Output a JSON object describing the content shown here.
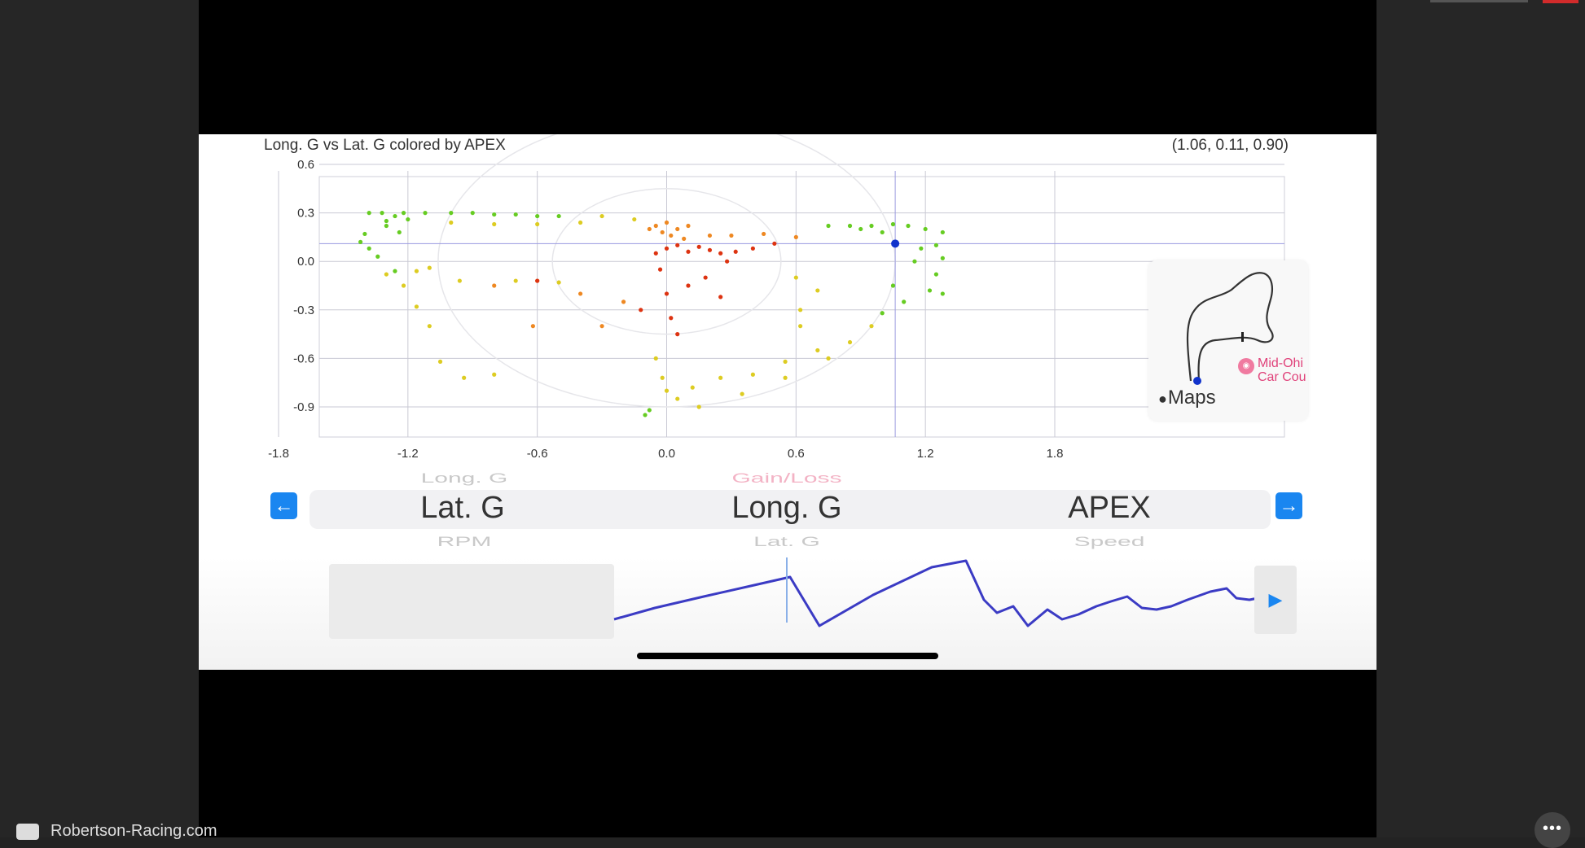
{
  "app": {
    "chart_title": "Long. G vs Lat. G colored by APEX",
    "cursor_readout": "(1.06, 0.11, 0.90)"
  },
  "chart_data": {
    "type": "scatter",
    "title": "Long. G vs Lat. G colored by APEX",
    "xlim": [
      -1.85,
      1.85
    ],
    "ylim": [
      -1.15,
      0.6
    ],
    "x_ticks": [
      -1.8,
      -1.2,
      -0.6,
      0.0,
      0.6,
      1.2,
      1.8
    ],
    "y_ticks": [
      0.6,
      0.3,
      0.0,
      -0.3,
      -0.6,
      -0.9
    ],
    "x_tick_labels": [
      "-1.8",
      "-1.2",
      "-0.6",
      "0.0",
      "0.6",
      "1.2",
      "1.8"
    ],
    "y_tick_labels": [
      "0.6",
      "0.3",
      "0.0",
      "-0.3",
      "-0.6",
      "-0.9"
    ],
    "grid": true,
    "cursor": {
      "x": 1.06,
      "y": 0.11
    },
    "reference_circles_g": [
      0.5,
      1.0
    ],
    "colors": {
      "low": "#66cc22",
      "mid": "#ddcc22",
      "high": "#ee8822",
      "peak": "#dd3311",
      "cursor": "#1133cc"
    },
    "points": [
      [
        -1.38,
        0.3,
        "low"
      ],
      [
        -1.32,
        0.3,
        "low"
      ],
      [
        -1.26,
        0.28,
        "low"
      ],
      [
        -1.22,
        0.3,
        "low"
      ],
      [
        -1.3,
        0.25,
        "low"
      ],
      [
        -1.4,
        0.17,
        "low"
      ],
      [
        -1.42,
        0.12,
        "low"
      ],
      [
        -1.38,
        0.08,
        "low"
      ],
      [
        -1.3,
        0.22,
        "low"
      ],
      [
        -1.24,
        0.18,
        "low"
      ],
      [
        -1.2,
        0.26,
        "low"
      ],
      [
        -1.12,
        0.3,
        "low"
      ],
      [
        -1.0,
        0.3,
        "low"
      ],
      [
        -0.9,
        0.3,
        "low"
      ],
      [
        -0.8,
        0.29,
        "low"
      ],
      [
        -0.7,
        0.29,
        "low"
      ],
      [
        -0.6,
        0.28,
        "low"
      ],
      [
        -0.5,
        0.28,
        "low"
      ],
      [
        -1.34,
        0.03,
        "low"
      ],
      [
        -1.26,
        -0.06,
        "low"
      ],
      [
        -1.16,
        -0.06,
        "mid"
      ],
      [
        -1.0,
        0.24,
        "mid"
      ],
      [
        -0.8,
        0.23,
        "mid"
      ],
      [
        -0.6,
        0.23,
        "mid"
      ],
      [
        -0.4,
        0.24,
        "mid"
      ],
      [
        -0.3,
        0.28,
        "mid"
      ],
      [
        -0.15,
        0.26,
        "mid"
      ],
      [
        -1.1,
        -0.04,
        "mid"
      ],
      [
        -0.96,
        -0.12,
        "mid"
      ],
      [
        -0.7,
        -0.12,
        "mid"
      ],
      [
        -0.5,
        -0.13,
        "mid"
      ],
      [
        -1.1,
        -0.4,
        "mid"
      ],
      [
        -1.05,
        -0.62,
        "mid"
      ],
      [
        -0.94,
        -0.72,
        "mid"
      ],
      [
        -0.8,
        -0.7,
        "mid"
      ],
      [
        -1.22,
        -0.15,
        "mid"
      ],
      [
        -1.16,
        -0.28,
        "mid"
      ],
      [
        -1.3,
        -0.08,
        "mid"
      ],
      [
        -0.62,
        -0.4,
        "high"
      ],
      [
        -0.4,
        -0.2,
        "high"
      ],
      [
        -0.3,
        -0.4,
        "high"
      ],
      [
        -0.2,
        -0.25,
        "high"
      ],
      [
        -0.6,
        -0.12,
        "high"
      ],
      [
        -0.8,
        -0.15,
        "high"
      ],
      [
        -0.05,
        0.22,
        "high"
      ],
      [
        -0.02,
        0.18,
        "high"
      ],
      [
        0.0,
        0.24,
        "high"
      ],
      [
        0.02,
        0.16,
        "high"
      ],
      [
        0.05,
        0.2,
        "high"
      ],
      [
        0.08,
        0.14,
        "high"
      ],
      [
        0.1,
        0.22,
        "high"
      ],
      [
        0.2,
        0.16,
        "high"
      ],
      [
        0.3,
        0.16,
        "high"
      ],
      [
        0.45,
        0.17,
        "high"
      ],
      [
        0.6,
        0.15,
        "high"
      ],
      [
        -0.08,
        0.2,
        "high"
      ],
      [
        0.0,
        0.08,
        "peak"
      ],
      [
        0.05,
        0.1,
        "peak"
      ],
      [
        0.1,
        0.06,
        "peak"
      ],
      [
        0.15,
        0.09,
        "peak"
      ],
      [
        0.2,
        0.07,
        "peak"
      ],
      [
        0.25,
        0.05,
        "peak"
      ],
      [
        0.28,
        0.0,
        "peak"
      ],
      [
        0.32,
        0.06,
        "peak"
      ],
      [
        0.4,
        0.08,
        "peak"
      ],
      [
        0.5,
        0.11,
        "peak"
      ],
      [
        -0.05,
        0.05,
        "peak"
      ],
      [
        -0.03,
        -0.05,
        "peak"
      ],
      [
        0.0,
        -0.2,
        "peak"
      ],
      [
        0.02,
        -0.35,
        "peak"
      ],
      [
        0.05,
        -0.45,
        "peak"
      ],
      [
        0.1,
        -0.15,
        "peak"
      ],
      [
        0.18,
        -0.1,
        "peak"
      ],
      [
        0.25,
        -0.22,
        "peak"
      ],
      [
        -0.6,
        -0.12,
        "peak"
      ],
      [
        -0.12,
        -0.3,
        "peak"
      ],
      [
        -0.05,
        -0.6,
        "mid"
      ],
      [
        -0.02,
        -0.72,
        "mid"
      ],
      [
        0.0,
        -0.8,
        "mid"
      ],
      [
        0.05,
        -0.85,
        "mid"
      ],
      [
        0.12,
        -0.78,
        "mid"
      ],
      [
        0.25,
        -0.72,
        "mid"
      ],
      [
        0.4,
        -0.7,
        "mid"
      ],
      [
        0.55,
        -0.62,
        "mid"
      ],
      [
        0.7,
        -0.55,
        "mid"
      ],
      [
        0.85,
        -0.5,
        "mid"
      ],
      [
        0.95,
        -0.4,
        "mid"
      ],
      [
        0.62,
        -0.3,
        "mid"
      ],
      [
        0.7,
        -0.18,
        "mid"
      ],
      [
        0.6,
        -0.1,
        "mid"
      ],
      [
        0.62,
        -0.4,
        "mid"
      ],
      [
        0.15,
        -0.9,
        "mid"
      ],
      [
        0.35,
        -0.82,
        "mid"
      ],
      [
        0.55,
        -0.72,
        "mid"
      ],
      [
        0.75,
        -0.6,
        "mid"
      ],
      [
        -0.08,
        -0.92,
        "low"
      ],
      [
        0.75,
        0.22,
        "low"
      ],
      [
        0.85,
        0.22,
        "low"
      ],
      [
        0.95,
        0.22,
        "low"
      ],
      [
        1.05,
        0.23,
        "low"
      ],
      [
        1.12,
        0.22,
        "low"
      ],
      [
        1.2,
        0.2,
        "low"
      ],
      [
        1.28,
        0.18,
        "low"
      ],
      [
        1.25,
        0.1,
        "low"
      ],
      [
        1.28,
        0.02,
        "low"
      ],
      [
        1.25,
        -0.08,
        "low"
      ],
      [
        1.22,
        -0.18,
        "low"
      ],
      [
        1.28,
        -0.2,
        "low"
      ],
      [
        1.1,
        -0.25,
        "low"
      ],
      [
        1.0,
        -0.32,
        "low"
      ],
      [
        1.18,
        0.08,
        "low"
      ],
      [
        1.15,
        0.0,
        "low"
      ],
      [
        1.0,
        0.18,
        "low"
      ],
      [
        0.9,
        0.2,
        "low"
      ],
      [
        -0.1,
        -0.95,
        "low"
      ],
      [
        1.05,
        -0.15,
        "low"
      ]
    ]
  },
  "map": {
    "logo_text": "Maps",
    "poi_label": "Mid-Ohi\nCar Cou"
  },
  "picker": {
    "left_button": "←",
    "right_button": "→",
    "columns": [
      {
        "above": "Long. G",
        "selected": "Lat. G",
        "below": "RPM"
      },
      {
        "above": "Gain/Loss",
        "selected": "Long. G",
        "below": "Lat. G"
      },
      {
        "above": "",
        "selected": "APEX",
        "below": "Speed"
      }
    ]
  },
  "timeline": {
    "play_button": "▶",
    "trace_color": "#3b3bc4"
  },
  "taskbar": {
    "site": "Robertson-Racing.com",
    "more": "•••"
  }
}
